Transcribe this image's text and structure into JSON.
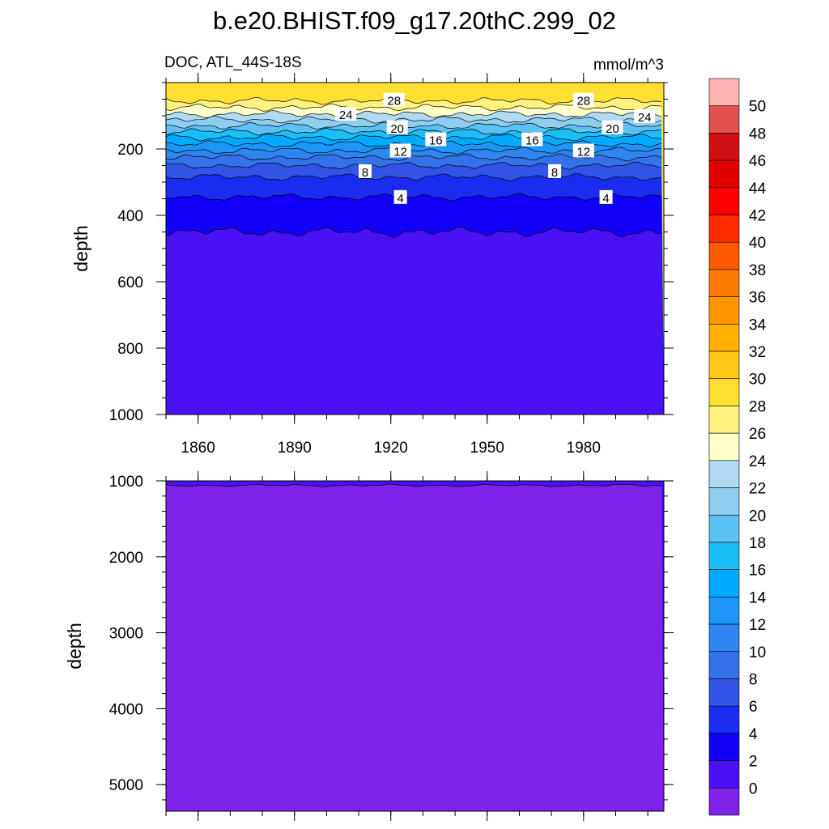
{
  "chart_data": {
    "type": "contour",
    "title": "b.e20.BHIST.f09_g17.20thC.299_02",
    "left_label": "DOC, ATL_44S-18S",
    "right_label": "mmol/m^3",
    "xlim": [
      1850,
      2005
    ],
    "x_ticks": [
      1860,
      1890,
      1920,
      1950,
      1980
    ],
    "panels": [
      {
        "name": "upper",
        "ylabel": "depth",
        "ylim": [
          0,
          1000
        ],
        "y_reversed": true,
        "y_ticks": [
          200,
          400,
          600,
          800,
          1000
        ],
        "contour_interval": 2,
        "level_depths": [
          {
            "level": 28,
            "depth": 55
          },
          {
            "level": 26,
            "depth": 75
          },
          {
            "level": 24,
            "depth": 95
          },
          {
            "level": 22,
            "depth": 112
          },
          {
            "level": 20,
            "depth": 130
          },
          {
            "level": 18,
            "depth": 148
          },
          {
            "level": 16,
            "depth": 165
          },
          {
            "level": 14,
            "depth": 185
          },
          {
            "level": 12,
            "depth": 205
          },
          {
            "level": 10,
            "depth": 225
          },
          {
            "level": 8,
            "depth": 250
          },
          {
            "level": 6,
            "depth": 285
          },
          {
            "level": 4,
            "depth": 345
          },
          {
            "level": 2,
            "depth": 450
          }
        ],
        "line_labels": [
          {
            "text": "28",
            "year": 1921,
            "depth": 53
          },
          {
            "text": "28",
            "year": 1980,
            "depth": 53
          },
          {
            "text": "24",
            "year": 1906,
            "depth": 95
          },
          {
            "text": "24",
            "year": 1999,
            "depth": 102
          },
          {
            "text": "20",
            "year": 1922,
            "depth": 136
          },
          {
            "text": "20",
            "year": 1989,
            "depth": 136
          },
          {
            "text": "16",
            "year": 1934,
            "depth": 172
          },
          {
            "text": "16",
            "year": 1964,
            "depth": 172
          },
          {
            "text": "12",
            "year": 1923,
            "depth": 206
          },
          {
            "text": "12",
            "year": 1980,
            "depth": 206
          },
          {
            "text": "8",
            "year": 1912,
            "depth": 268
          },
          {
            "text": "8",
            "year": 1971,
            "depth": 268
          },
          {
            "text": "4",
            "year": 1923,
            "depth": 346
          },
          {
            "text": "4",
            "year": 1987,
            "depth": 346
          }
        ]
      },
      {
        "name": "lower",
        "ylabel": "depth",
        "ylim": [
          1000,
          5350
        ],
        "y_reversed": true,
        "y_ticks": [
          1000,
          2000,
          3000,
          4000,
          5000
        ],
        "level_depths": [
          {
            "level": 0,
            "depth": 1060
          }
        ]
      }
    ],
    "colorbar": {
      "labels": [
        "50",
        "48",
        "46",
        "44",
        "42",
        "40",
        "38",
        "36",
        "34",
        "32",
        "30",
        "28",
        "26",
        "24",
        "22",
        "20",
        "18",
        "16",
        "14",
        "12",
        "10",
        "8",
        "6",
        "4",
        "2",
        "0"
      ],
      "colors_top_to_bottom": [
        "#ffb3b3",
        "#e35050",
        "#d01010",
        "#e00000",
        "#ff0000",
        "#ff2c00",
        "#ff5a00",
        "#ff7c00",
        "#ff9600",
        "#ffb000",
        "#ffc818",
        "#ffdf30",
        "#fff27e",
        "#ffffca",
        "#b0daf2",
        "#8ecef0",
        "#5cc1f4",
        "#1abff8",
        "#00abff",
        "#1c97f9",
        "#2f85f0",
        "#3472ea",
        "#2f54e6",
        "#1a2cf0",
        "#1200f8",
        "#4a10f6",
        "#7f22ea"
      ]
    }
  }
}
